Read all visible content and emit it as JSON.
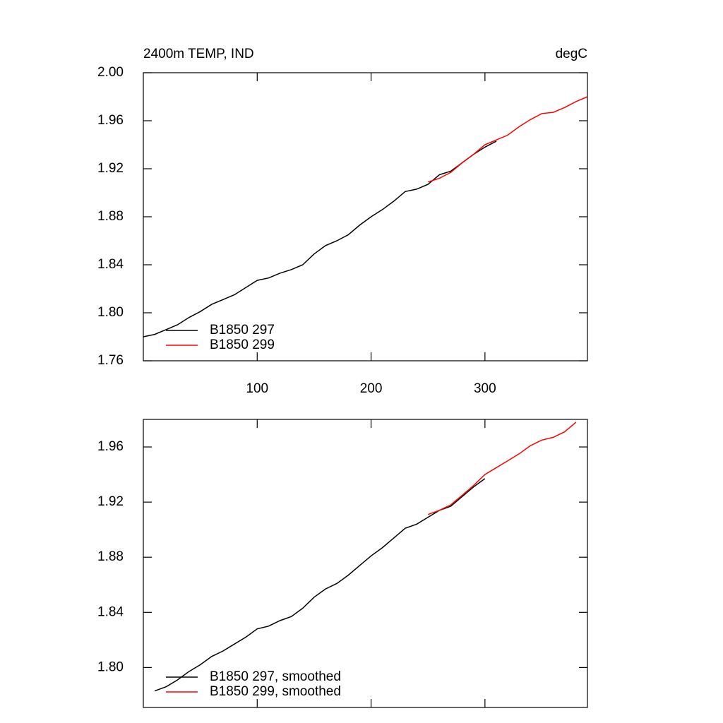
{
  "chart_data": [
    {
      "type": "line",
      "title": "2400m TEMP, IND",
      "units": "degC",
      "x": [
        0,
        10,
        20,
        30,
        40,
        50,
        60,
        70,
        80,
        90,
        100,
        110,
        120,
        130,
        140,
        150,
        160,
        170,
        180,
        190,
        200,
        210,
        220,
        230,
        240,
        250,
        260,
        270,
        280,
        290,
        300,
        310,
        320,
        330,
        340,
        350,
        360,
        370,
        380,
        390
      ],
      "series": [
        {
          "name": "B1850 297",
          "color": "#000000",
          "values": [
            1.78,
            1.782,
            1.786,
            1.79,
            1.796,
            1.801,
            1.807,
            1.811,
            1.815,
            1.821,
            1.827,
            1.829,
            1.833,
            1.836,
            1.84,
            1.849,
            1.856,
            1.86,
            1.865,
            1.873,
            1.88,
            1.886,
            1.893,
            1.901,
            1.903,
            1.907,
            1.915,
            1.918,
            1.925,
            1.932,
            1.938,
            1.943,
            null,
            null,
            null,
            null,
            null,
            null,
            null,
            null
          ]
        },
        {
          "name": "B1850 299",
          "color": "#ff0000",
          "values": [
            null,
            null,
            null,
            null,
            null,
            null,
            null,
            null,
            null,
            null,
            null,
            null,
            null,
            null,
            null,
            null,
            null,
            null,
            null,
            null,
            null,
            null,
            null,
            null,
            null,
            1.909,
            1.912,
            1.917,
            1.925,
            1.932,
            1.94,
            1.944,
            1.948,
            1.955,
            1.961,
            1.966,
            1.967,
            1.971,
            1.976,
            1.98
          ]
        }
      ],
      "xlim": [
        0,
        390
      ],
      "xticks": [
        100,
        200,
        300
      ],
      "show_xtick_labels": true,
      "ylim": [
        1.76,
        2.0
      ],
      "yticks": [
        1.76,
        {
          "value": 1.8,
          "label": "1.80"
        },
        1.84,
        1.88,
        1.92,
        1.96,
        {
          "value": 2.0,
          "label": "2.00"
        }
      ],
      "legend": "lower left"
    },
    {
      "type": "line",
      "x": [
        0,
        10,
        20,
        30,
        40,
        50,
        60,
        70,
        80,
        90,
        100,
        110,
        120,
        130,
        140,
        150,
        160,
        170,
        180,
        190,
        200,
        210,
        220,
        230,
        240,
        250,
        260,
        270,
        280,
        290,
        300,
        310,
        320,
        330,
        340,
        350,
        360,
        370,
        380,
        390
      ],
      "series": [
        {
          "name": "B1850 297, smoothed",
          "color": "#000000",
          "values": [
            null,
            1.783,
            1.786,
            1.791,
            1.797,
            1.802,
            1.808,
            1.812,
            1.817,
            1.822,
            1.828,
            1.83,
            1.834,
            1.837,
            1.843,
            1.851,
            1.857,
            1.861,
            1.867,
            1.874,
            1.881,
            1.887,
            1.894,
            1.901,
            1.904,
            1.909,
            1.914,
            1.917,
            1.924,
            1.931,
            1.937,
            null,
            null,
            null,
            null,
            null,
            null,
            null,
            null,
            null
          ]
        },
        {
          "name": "B1850 299, smoothed",
          "color": "#ff0000",
          "values": [
            null,
            null,
            null,
            null,
            null,
            null,
            null,
            null,
            null,
            null,
            null,
            null,
            null,
            null,
            null,
            null,
            null,
            null,
            null,
            null,
            null,
            null,
            null,
            null,
            null,
            1.911,
            1.914,
            1.918,
            1.925,
            1.932,
            1.94,
            1.945,
            1.95,
            1.955,
            1.961,
            1.965,
            1.967,
            1.971,
            1.978,
            null
          ]
        }
      ],
      "xlim": [
        0,
        390
      ],
      "xticks": [
        100,
        200,
        300
      ],
      "show_xtick_labels": false,
      "ylim": [
        1.771,
        1.98
      ],
      "yticks": [
        {
          "value": 1.8,
          "label": "1.80"
        },
        1.84,
        1.88,
        1.92,
        1.96
      ],
      "legend": "lower left"
    }
  ]
}
